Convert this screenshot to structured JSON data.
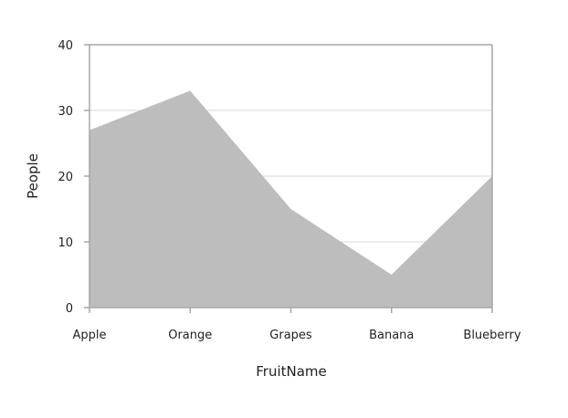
{
  "chart_data": {
    "type": "area",
    "title": "",
    "xlabel": "FruitName",
    "ylabel": "People",
    "categories": [
      "Apple",
      "Orange",
      "Grapes",
      "Banana",
      "Blueberry"
    ],
    "series": [
      {
        "values": [
          27,
          33,
          15,
          5,
          20
        ],
        "color": "#BDBDBD"
      }
    ],
    "ylim": [
      0,
      40
    ],
    "yticks": [
      0,
      10,
      20,
      30,
      40
    ],
    "grid": true,
    "legend": "none"
  },
  "colors": {
    "area_fill": "#BDBDBD",
    "grid_line": "#D9D9D9",
    "axis_line": "#A6A6A6"
  }
}
